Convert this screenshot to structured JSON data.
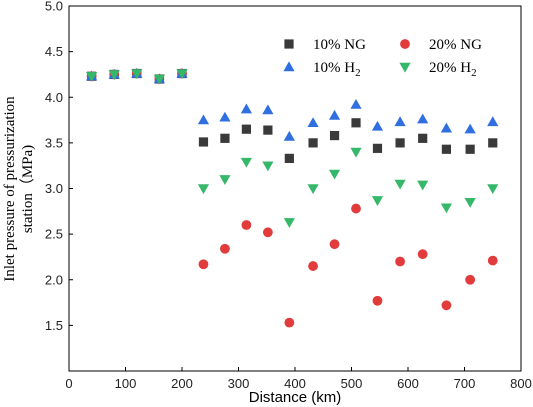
{
  "chart_data": {
    "type": "scatter",
    "xlabel": "Distance (km)",
    "ylabel_lines": [
      "Inlet pressure of pressurization",
      "station（MPa)"
    ],
    "xlim": [
      0,
      800
    ],
    "ylim": [
      1.0,
      5.0
    ],
    "xticks": [
      0,
      100,
      200,
      300,
      400,
      500,
      600,
      700,
      800
    ],
    "yticks": [
      1.5,
      2.0,
      2.5,
      3.0,
      3.5,
      4.0,
      4.5,
      5.0
    ],
    "grid": false,
    "legend_position": "top-right",
    "series": [
      {
        "name": "10% NG",
        "marker": "square",
        "color": "#3a3a3a",
        "x": [
          40,
          80,
          120,
          160,
          200,
          238,
          276,
          314,
          352,
          390,
          432,
          470,
          508,
          546,
          586,
          626,
          668,
          710,
          750
        ],
        "y": [
          4.23,
          4.25,
          4.26,
          4.2,
          4.26,
          3.51,
          3.55,
          3.65,
          3.64,
          3.33,
          3.5,
          3.58,
          3.72,
          3.44,
          3.5,
          3.55,
          3.43,
          3.43,
          3.5
        ]
      },
      {
        "name": "20% NG",
        "marker": "circle",
        "color": "#e23b3b",
        "x": [
          40,
          80,
          120,
          160,
          200,
          238,
          276,
          314,
          352,
          390,
          432,
          470,
          508,
          546,
          586,
          626,
          668,
          710,
          750
        ],
        "y": [
          4.23,
          4.25,
          4.26,
          4.2,
          4.26,
          2.17,
          2.34,
          2.6,
          2.52,
          1.53,
          2.15,
          2.39,
          2.78,
          1.77,
          2.2,
          2.28,
          1.72,
          2.0,
          2.21
        ]
      },
      {
        "name_main": "10% H",
        "name_sub": "2",
        "marker": "triangle-up",
        "color": "#2f6fe0",
        "x": [
          40,
          80,
          120,
          160,
          200,
          238,
          276,
          314,
          352,
          390,
          432,
          470,
          508,
          546,
          586,
          626,
          668,
          710,
          750
        ],
        "y": [
          4.23,
          4.25,
          4.26,
          4.2,
          4.26,
          3.75,
          3.78,
          3.87,
          3.86,
          3.57,
          3.72,
          3.8,
          3.92,
          3.68,
          3.73,
          3.76,
          3.66,
          3.65,
          3.73
        ]
      },
      {
        "name_main": "20% H",
        "name_sub": "2",
        "marker": "triangle-down",
        "color": "#36b86a",
        "x": [
          40,
          80,
          120,
          160,
          200,
          238,
          276,
          314,
          352,
          390,
          432,
          470,
          508,
          546,
          586,
          626,
          668,
          710,
          750
        ],
        "y": [
          4.23,
          4.25,
          4.26,
          4.2,
          4.26,
          3.0,
          3.1,
          3.29,
          3.25,
          2.63,
          3.0,
          3.16,
          3.4,
          2.87,
          3.05,
          3.04,
          2.79,
          2.85,
          3.0
        ]
      }
    ]
  }
}
